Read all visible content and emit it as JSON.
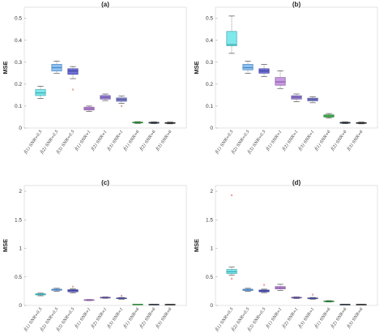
{
  "chart_data": [
    {
      "type": "boxplot",
      "title": "(a)",
      "ylabel": "MSE",
      "ylim": [
        0,
        0.55
      ],
      "yticks": [
        0,
        0.1,
        0.2,
        0.3,
        0.4,
        0.5
      ],
      "categories": [
        "f̂(1) SNR=0.5",
        "f̂(2) SNR=0.5",
        "f̂(3) SNR=0.5",
        "f̂(1) SNR=1",
        "f̂(2) SNR=1",
        "f̂(3) SNR=1",
        "f̂(1) SNR=6",
        "f̂(2) SNR=6",
        "f̂(3) SNR=6"
      ],
      "boxes": [
        {
          "min": 0.135,
          "q1": 0.148,
          "median": 0.16,
          "q3": 0.175,
          "max": 0.19,
          "color": "#7fe8ec",
          "stroke": "#3aaab0",
          "outliers": []
        },
        {
          "min": 0.25,
          "q1": 0.26,
          "median": 0.275,
          "q3": 0.29,
          "max": 0.305,
          "color": "#8ec2f0",
          "stroke": "#4a86c6",
          "outliers": []
        },
        {
          "min": 0.225,
          "q1": 0.245,
          "median": 0.26,
          "q3": 0.27,
          "max": 0.28,
          "color": "#6f72d6",
          "stroke": "#3c3f9c",
          "outliers": [
            0.175
          ]
        },
        {
          "min": 0.075,
          "q1": 0.082,
          "median": 0.088,
          "q3": 0.095,
          "max": 0.1,
          "color": "#c89ae0",
          "stroke": "#8a5ca8",
          "outliers": []
        },
        {
          "min": 0.125,
          "q1": 0.132,
          "median": 0.14,
          "q3": 0.148,
          "max": 0.155,
          "color": "#a08ad8",
          "stroke": "#6650a0",
          "outliers": []
        },
        {
          "min": 0.112,
          "q1": 0.122,
          "median": 0.13,
          "q3": 0.137,
          "max": 0.145,
          "color": "#8b8fd4",
          "stroke": "#4c509a",
          "outliers": [
            0.1
          ]
        },
        {
          "min": 0.021,
          "q1": 0.023,
          "median": 0.025,
          "q3": 0.027,
          "max": 0.029,
          "color": "#5cc86a",
          "stroke": "#2e8a3a",
          "outliers": []
        },
        {
          "min": 0.02,
          "q1": 0.022,
          "median": 0.024,
          "q3": 0.026,
          "max": 0.028,
          "color": "#5a6a78",
          "stroke": "#2c3640",
          "outliers": []
        },
        {
          "min": 0.019,
          "q1": 0.021,
          "median": 0.023,
          "q3": 0.025,
          "max": 0.027,
          "color": "#6a6a6a",
          "stroke": "#333333",
          "outliers": []
        }
      ]
    },
    {
      "type": "boxplot",
      "title": "(b)",
      "ylabel": "MSE",
      "ylim": [
        0,
        0.55
      ],
      "yticks": [
        0,
        0.1,
        0.2,
        0.3,
        0.4,
        0.5
      ],
      "categories": [
        "f̂(1) SNR=0.5",
        "f̂(2) SNR=0.5",
        "f̂(3) SNR=0.5",
        "f̂(1) SNR=1",
        "f̂(2) SNR=1",
        "f̂(3) SNR=1",
        "f̂(1) SNR=6",
        "f̂(2) SNR=6",
        "f̂(3) SNR=6"
      ],
      "boxes": [
        {
          "min": 0.34,
          "q1": 0.375,
          "median": 0.38,
          "q3": 0.44,
          "max": 0.51,
          "color": "#7fe8ec",
          "stroke": "#3aaab0",
          "outliers": []
        },
        {
          "min": 0.25,
          "q1": 0.265,
          "median": 0.275,
          "q3": 0.29,
          "max": 0.305,
          "color": "#8ec2f0",
          "stroke": "#4a86c6",
          "outliers": []
        },
        {
          "min": 0.235,
          "q1": 0.25,
          "median": 0.26,
          "q3": 0.27,
          "max": 0.29,
          "color": "#6f72d6",
          "stroke": "#3c3f9c",
          "outliers": []
        },
        {
          "min": 0.18,
          "q1": 0.195,
          "median": 0.21,
          "q3": 0.23,
          "max": 0.26,
          "color": "#c89ae0",
          "stroke": "#8a5ca8",
          "outliers": []
        },
        {
          "min": 0.12,
          "q1": 0.132,
          "median": 0.14,
          "q3": 0.147,
          "max": 0.155,
          "color": "#a08ad8",
          "stroke": "#6650a0",
          "outliers": []
        },
        {
          "min": 0.115,
          "q1": 0.124,
          "median": 0.13,
          "q3": 0.136,
          "max": 0.142,
          "color": "#8b8fd4",
          "stroke": "#4c509a",
          "outliers": []
        },
        {
          "min": 0.045,
          "q1": 0.05,
          "median": 0.055,
          "q3": 0.06,
          "max": 0.066,
          "color": "#5cc86a",
          "stroke": "#2e8a3a",
          "outliers": []
        },
        {
          "min": 0.02,
          "q1": 0.022,
          "median": 0.024,
          "q3": 0.026,
          "max": 0.028,
          "color": "#5a6a78",
          "stroke": "#2c3640",
          "outliers": []
        },
        {
          "min": 0.019,
          "q1": 0.021,
          "median": 0.023,
          "q3": 0.025,
          "max": 0.027,
          "color": "#6a6a6a",
          "stroke": "#333333",
          "outliers": []
        }
      ]
    },
    {
      "type": "boxplot",
      "title": "(c)",
      "ylabel": "MSE",
      "ylim": [
        0,
        2.1
      ],
      "yticks": [
        0,
        0.5,
        1,
        1.5,
        2
      ],
      "categories": [
        "f̂(1) SNR=0.5",
        "f̂(2) SNR=0.5",
        "f̂(3) SNR=0.5",
        "f̂(1) SNR=1",
        "f̂(2) SNR=1",
        "f̂(3) SNR=1",
        "f̂(1) SNR=6",
        "f̂(2) SNR=6",
        "f̂(3) SNR=6"
      ],
      "boxes": [
        {
          "min": 0.17,
          "q1": 0.185,
          "median": 0.195,
          "q3": 0.205,
          "max": 0.215,
          "color": "#7fe8ec",
          "stroke": "#3aaab0",
          "outliers": []
        },
        {
          "min": 0.25,
          "q1": 0.265,
          "median": 0.275,
          "q3": 0.285,
          "max": 0.3,
          "color": "#8ec2f0",
          "stroke": "#4a86c6",
          "outliers": []
        },
        {
          "min": 0.22,
          "q1": 0.24,
          "median": 0.26,
          "q3": 0.275,
          "max": 0.29,
          "color": "#6f72d6",
          "stroke": "#3c3f9c",
          "outliers": [
            0.33
          ]
        },
        {
          "min": 0.085,
          "q1": 0.09,
          "median": 0.095,
          "q3": 0.1,
          "max": 0.105,
          "color": "#c89ae0",
          "stroke": "#8a5ca8",
          "outliers": []
        },
        {
          "min": 0.125,
          "q1": 0.13,
          "median": 0.137,
          "q3": 0.143,
          "max": 0.15,
          "color": "#a08ad8",
          "stroke": "#6650a0",
          "outliers": []
        },
        {
          "min": 0.11,
          "q1": 0.118,
          "median": 0.125,
          "q3": 0.132,
          "max": 0.14,
          "color": "#8b8fd4",
          "stroke": "#4c509a",
          "outliers": [
            0.17
          ]
        },
        {
          "min": 0.016,
          "q1": 0.018,
          "median": 0.02,
          "q3": 0.022,
          "max": 0.024,
          "color": "#5cc86a",
          "stroke": "#2e8a3a",
          "outliers": []
        },
        {
          "min": 0.014,
          "q1": 0.016,
          "median": 0.018,
          "q3": 0.02,
          "max": 0.022,
          "color": "#5a6a78",
          "stroke": "#2c3640",
          "outliers": []
        },
        {
          "min": 0.013,
          "q1": 0.015,
          "median": 0.017,
          "q3": 0.019,
          "max": 0.021,
          "color": "#6a6a6a",
          "stroke": "#333333",
          "outliers": []
        }
      ]
    },
    {
      "type": "boxplot",
      "title": "(d)",
      "ylabel": "MSE",
      "ylim": [
        0,
        2.1
      ],
      "yticks": [
        0,
        0.5,
        1,
        1.5,
        2
      ],
      "categories": [
        "f̂(1) SNR=0.5",
        "f̂(2) SNR=0.5",
        "f̂(3) SNR=0.5",
        "f̂(1) SNR=1",
        "f̂(2) SNR=1",
        "f̂(3) SNR=1",
        "f̂(1) SNR=6",
        "f̂(2) SNR=6",
        "f̂(3) SNR=6"
      ],
      "boxes": [
        {
          "min": 0.53,
          "q1": 0.56,
          "median": 0.59,
          "q3": 0.63,
          "max": 0.67,
          "color": "#7fe8ec",
          "stroke": "#3aaab0",
          "outliers": [
            1.93,
            0.47
          ]
        },
        {
          "min": 0.25,
          "q1": 0.262,
          "median": 0.272,
          "q3": 0.285,
          "max": 0.3,
          "color": "#8ec2f0",
          "stroke": "#4a86c6",
          "outliers": []
        },
        {
          "min": 0.225,
          "q1": 0.24,
          "median": 0.255,
          "q3": 0.27,
          "max": 0.285,
          "color": "#6f72d6",
          "stroke": "#3c3f9c",
          "outliers": [
            0.36
          ]
        },
        {
          "min": 0.26,
          "q1": 0.29,
          "median": 0.31,
          "q3": 0.33,
          "max": 0.37,
          "color": "#c89ae0",
          "stroke": "#8a5ca8",
          "outliers": []
        },
        {
          "min": 0.12,
          "q1": 0.13,
          "median": 0.137,
          "q3": 0.143,
          "max": 0.15,
          "color": "#a08ad8",
          "stroke": "#6650a0",
          "outliers": []
        },
        {
          "min": 0.11,
          "q1": 0.118,
          "median": 0.125,
          "q3": 0.132,
          "max": 0.14,
          "color": "#8b8fd4",
          "stroke": "#4c509a",
          "outliers": [
            0.19
          ]
        },
        {
          "min": 0.06,
          "q1": 0.066,
          "median": 0.072,
          "q3": 0.078,
          "max": 0.085,
          "color": "#5cc86a",
          "stroke": "#2e8a3a",
          "outliers": []
        },
        {
          "min": 0.014,
          "q1": 0.016,
          "median": 0.018,
          "q3": 0.02,
          "max": 0.022,
          "color": "#5a6a78",
          "stroke": "#2c3640",
          "outliers": []
        },
        {
          "min": 0.013,
          "q1": 0.015,
          "median": 0.017,
          "q3": 0.019,
          "max": 0.021,
          "color": "#6a6a6a",
          "stroke": "#333333",
          "outliers": []
        }
      ]
    }
  ]
}
